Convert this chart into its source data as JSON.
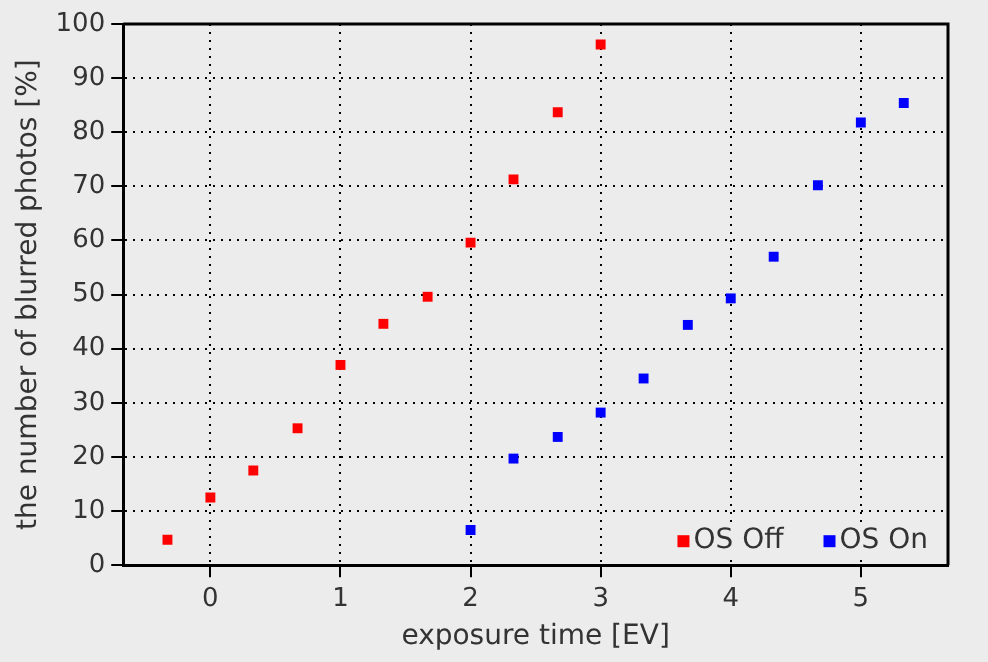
{
  "chart_data": {
    "type": "scatter",
    "xlabel": "exposure time [EV]",
    "ylabel": "the number of blurred photos [%]",
    "xlim": [
      -0.67,
      5.67
    ],
    "xticks": [
      0,
      1,
      2,
      3,
      4,
      5
    ],
    "ylim": [
      0,
      100
    ],
    "yticks": [
      0,
      10,
      20,
      30,
      40,
      50,
      60,
      70,
      80,
      90,
      100
    ],
    "grid": true,
    "legend": "bottom right",
    "marker": "square",
    "series": [
      {
        "name": "OS Off",
        "color": "#ff0000",
        "x": [
          -0.33,
          0,
          0.33,
          0.67,
          1,
          1.33,
          1.67,
          2,
          2.33,
          2.67,
          3
        ],
        "values": [
          4.7,
          12.5,
          17.5,
          25.3,
          37,
          44.6,
          49.6,
          59.6,
          71.3,
          83.7,
          96.2
        ]
      },
      {
        "name": "OS On",
        "color": "#0000ff",
        "x": [
          2,
          2.33,
          2.67,
          3,
          3.33,
          3.67,
          4,
          4.33,
          4.67,
          5,
          5.33
        ],
        "values": [
          6.5,
          19.7,
          23.7,
          28.2,
          34.5,
          44.4,
          49.3,
          57,
          70.2,
          81.8,
          85.4
        ]
      }
    ]
  }
}
